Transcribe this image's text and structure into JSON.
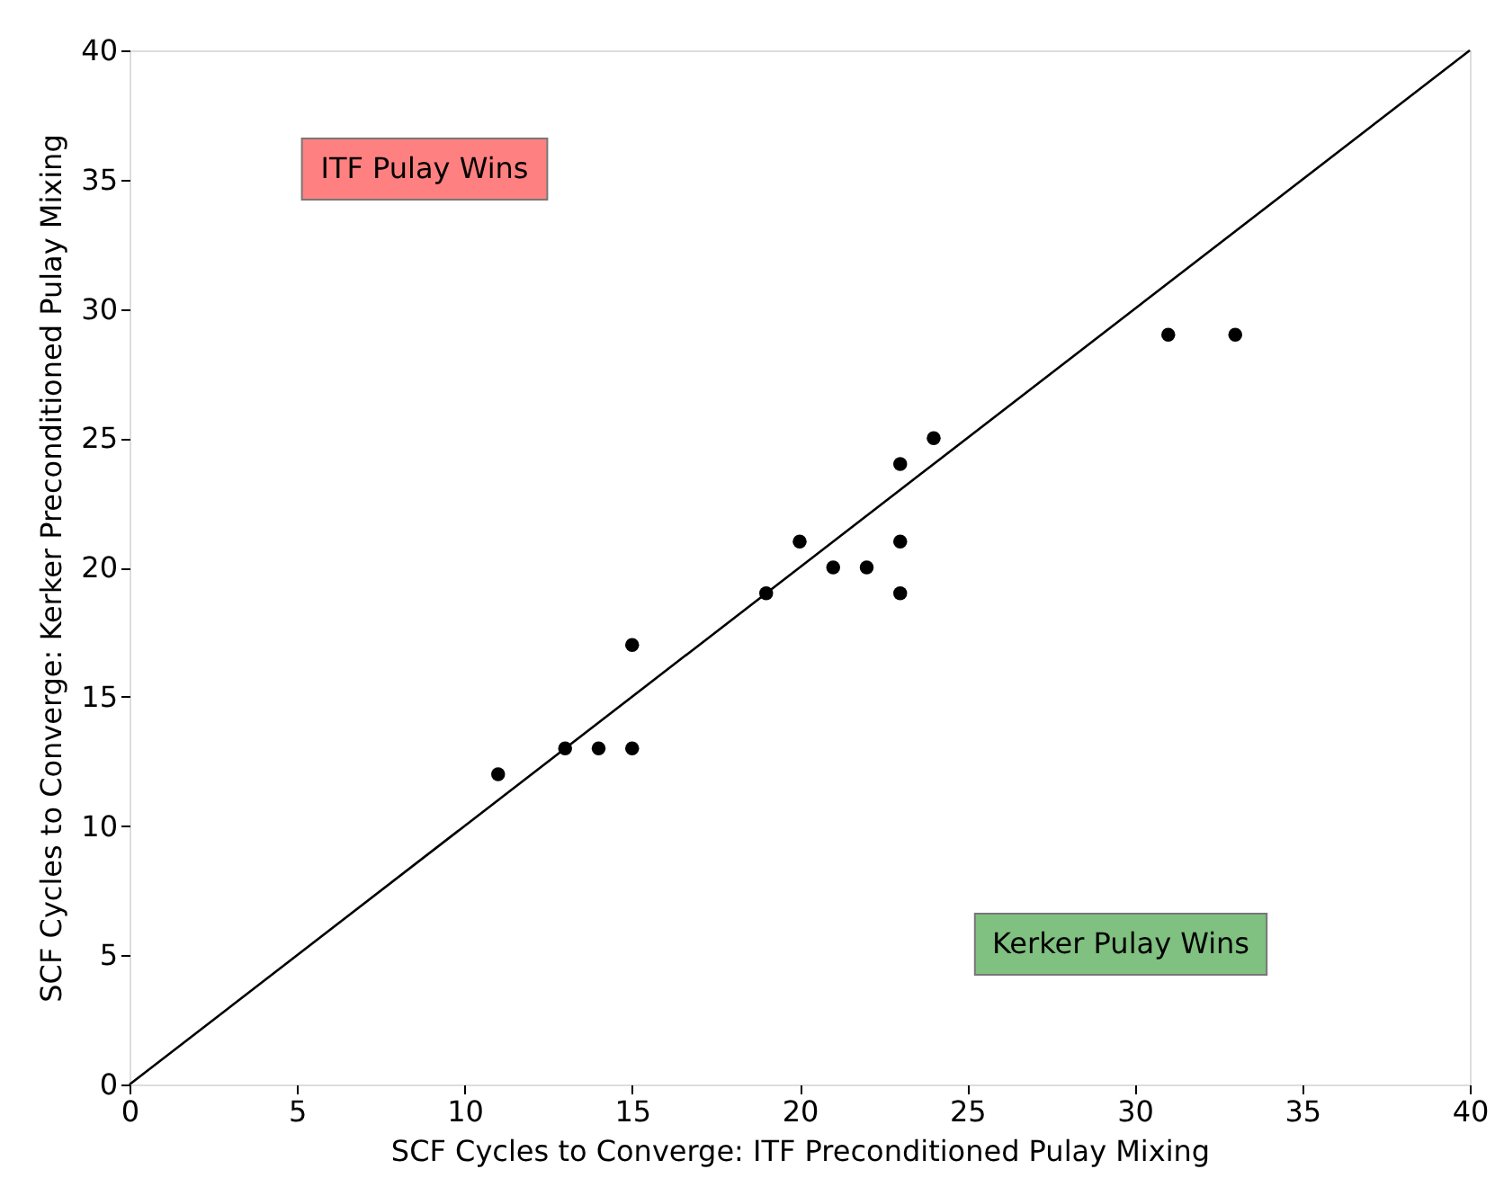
{
  "chart_data": {
    "type": "scatter",
    "xlabel": "SCF Cycles to Converge: ITF Preconditioned Pulay Mixing",
    "ylabel": "SCF Cycles to Converge: Kerker Preconditioned Pulay Mixing",
    "xlim": [
      0,
      40
    ],
    "ylim": [
      0,
      40
    ],
    "xticks": [
      0,
      5,
      10,
      15,
      20,
      25,
      30,
      35,
      40
    ],
    "yticks": [
      0,
      5,
      10,
      15,
      20,
      25,
      30,
      35,
      40
    ],
    "grid": false,
    "series": [
      {
        "type": "scatter",
        "color": "#000000",
        "marker": "circle",
        "x": [
          11,
          13,
          14,
          15,
          15,
          19,
          20,
          21,
          22,
          23,
          23,
          23,
          24,
          31,
          33
        ],
        "values": [
          12,
          13,
          13,
          13,
          17,
          19,
          21,
          20,
          20,
          24,
          21,
          19,
          25,
          29,
          29
        ]
      },
      {
        "type": "line",
        "color": "#000000",
        "line_style": "solid",
        "x": [
          0,
          40
        ],
        "values": [
          0,
          40
        ]
      }
    ],
    "annotations": [
      "ITF Pulay Wins",
      "Kerker Pulay Wins"
    ]
  }
}
